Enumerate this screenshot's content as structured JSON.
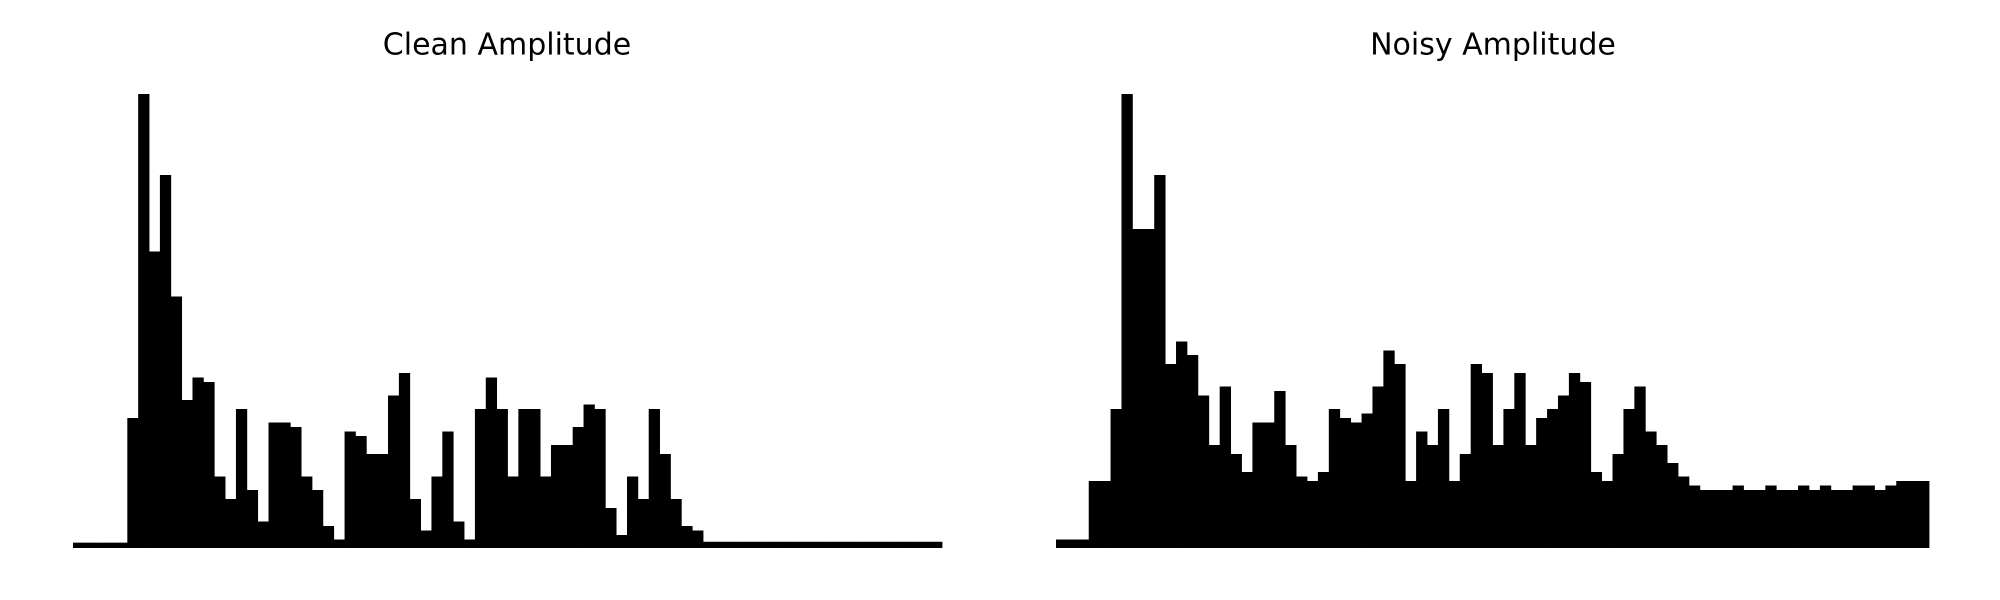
{
  "chart_data": [
    {
      "type": "bar",
      "title": "Clean Amplitude",
      "color": "#000000",
      "ylim": [
        0,
        1
      ],
      "values": [
        0.003,
        0.003,
        0.003,
        0.003,
        0.003,
        0.28,
        1.0,
        0.65,
        0.82,
        0.55,
        0.32,
        0.37,
        0.36,
        0.15,
        0.1,
        0.3,
        0.12,
        0.05,
        0.27,
        0.27,
        0.26,
        0.15,
        0.12,
        0.04,
        0.01,
        0.25,
        0.24,
        0.2,
        0.2,
        0.33,
        0.38,
        0.1,
        0.03,
        0.15,
        0.25,
        0.05,
        0.01,
        0.3,
        0.37,
        0.3,
        0.15,
        0.3,
        0.3,
        0.15,
        0.22,
        0.22,
        0.26,
        0.31,
        0.3,
        0.08,
        0.02,
        0.15,
        0.1,
        0.3,
        0.2,
        0.1,
        0.04,
        0.03,
        0.005,
        0.005,
        0.005,
        0.005,
        0.005,
        0.005,
        0.005,
        0.005,
        0.005,
        0.005,
        0.005,
        0.005,
        0.005,
        0.005,
        0.005,
        0.005,
        0.005,
        0.005,
        0.005,
        0.005,
        0.005,
        0.005
      ]
    },
    {
      "type": "bar",
      "title": "Noisy Amplitude",
      "color": "#000000",
      "ylim": [
        0,
        1
      ],
      "values": [
        0.01,
        0.01,
        0.01,
        0.14,
        0.14,
        0.3,
        1.0,
        0.7,
        0.7,
        0.82,
        0.4,
        0.45,
        0.42,
        0.33,
        0.22,
        0.35,
        0.2,
        0.16,
        0.27,
        0.27,
        0.34,
        0.22,
        0.15,
        0.14,
        0.16,
        0.3,
        0.28,
        0.27,
        0.29,
        0.35,
        0.43,
        0.4,
        0.14,
        0.25,
        0.22,
        0.3,
        0.14,
        0.2,
        0.4,
        0.38,
        0.22,
        0.3,
        0.38,
        0.22,
        0.28,
        0.3,
        0.33,
        0.38,
        0.36,
        0.16,
        0.14,
        0.2,
        0.3,
        0.35,
        0.25,
        0.22,
        0.18,
        0.15,
        0.13,
        0.12,
        0.12,
        0.12,
        0.13,
        0.12,
        0.12,
        0.13,
        0.12,
        0.12,
        0.13,
        0.12,
        0.13,
        0.12,
        0.12,
        0.13,
        0.13,
        0.12,
        0.13,
        0.14,
        0.14,
        0.14
      ]
    }
  ]
}
